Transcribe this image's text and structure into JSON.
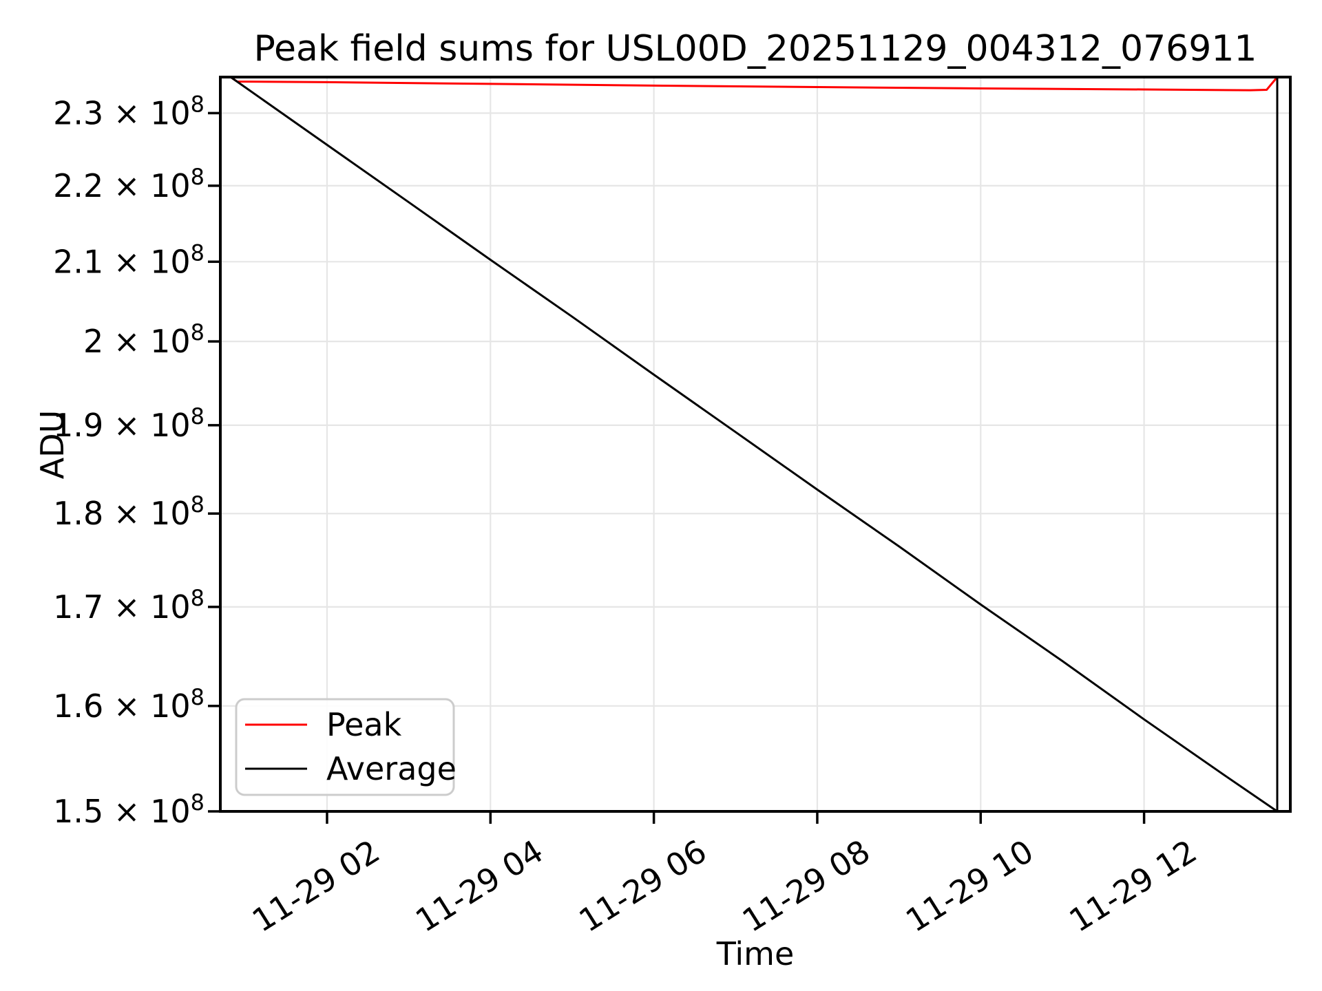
{
  "chart_data": {
    "type": "line",
    "title": "Peak field sums for USL00D_20251129_004312_076911",
    "xlabel": "Time",
    "ylabel": "ADU",
    "yscale": "log",
    "grid": true,
    "x_date": "11-29",
    "xlim_hours": [
      0.694,
      13.79
    ],
    "ylim": [
      150000000,
      235130000
    ],
    "xticks": {
      "hours": [
        2,
        4,
        6,
        8,
        10,
        12
      ],
      "labels": [
        "11-29 02",
        "11-29 04",
        "11-29 06",
        "11-29 08",
        "11-29 10",
        "11-29 12"
      ]
    },
    "yticks": {
      "values": [
        230000000,
        220000000,
        210000000,
        200000000,
        190000000,
        180000000,
        170000000,
        160000000,
        150000000
      ],
      "labels": [
        "2.3 × 10⁸",
        "2.2 × 10⁸",
        "2.1 × 10⁸",
        "2 × 10⁸",
        "1.9 × 10⁸",
        "1.8 × 10⁸",
        "1.7 × 10⁸",
        "1.6 × 10⁸",
        "1.5 × 10⁸"
      ]
    },
    "legend": {
      "position": "lower left",
      "items": [
        {
          "label": "Peak",
          "color": "#ff0000"
        },
        {
          "label": "Average",
          "color": "#000000"
        }
      ]
    },
    "series": [
      {
        "name": "Peak",
        "color": "#ff0000",
        "points": [
          [
            0.82,
            235130000
          ],
          [
            0.9,
            234490000
          ],
          [
            2.0,
            234400000
          ],
          [
            4.0,
            234150000
          ],
          [
            6.0,
            233900000
          ],
          [
            8.0,
            233700000
          ],
          [
            10.0,
            233500000
          ],
          [
            12.0,
            233350000
          ],
          [
            13.3,
            233250000
          ],
          [
            13.5,
            233300000
          ],
          [
            13.63,
            235130000
          ]
        ]
      },
      {
        "name": "Average",
        "color": "#000000",
        "points": [
          [
            0.82,
            235130000
          ],
          [
            2.0,
            225570000
          ],
          [
            3.0,
            217790000
          ],
          [
            4.0,
            210250000
          ],
          [
            5.0,
            203050000
          ],
          [
            6.0,
            195970000
          ],
          [
            7.0,
            189210000
          ],
          [
            8.0,
            182660000
          ],
          [
            9.0,
            176420000
          ],
          [
            10.0,
            170250000
          ],
          [
            11.0,
            164460000
          ],
          [
            12.0,
            158690000
          ],
          [
            13.0,
            153270000
          ],
          [
            13.63,
            150000000
          ],
          [
            13.63,
            235130000
          ]
        ]
      }
    ]
  }
}
